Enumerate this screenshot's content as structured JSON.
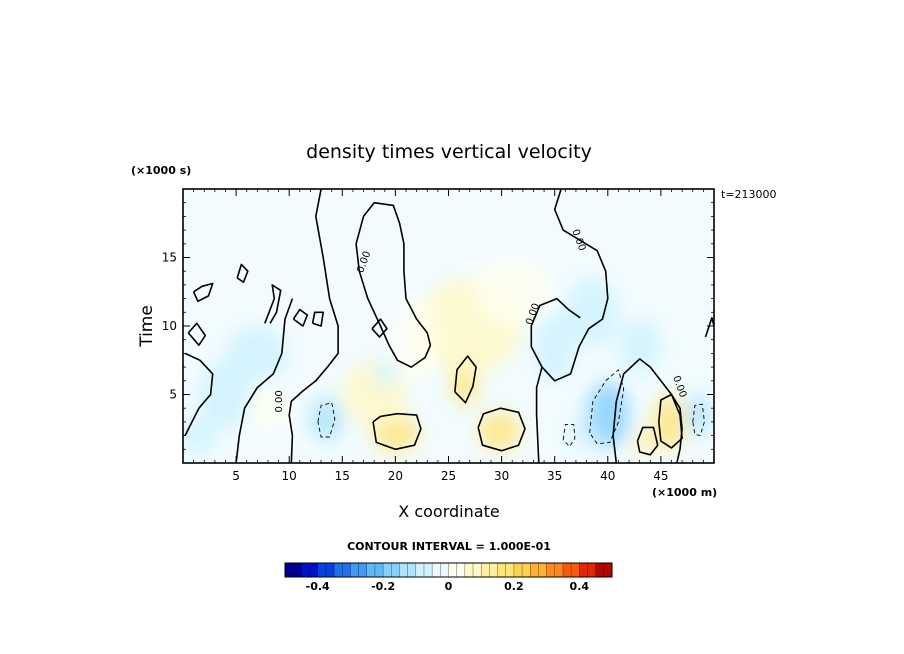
{
  "chart_data": {
    "type": "heatmap",
    "title": "density times vertical velocity",
    "xlabel": "X coordinate",
    "ylabel": "Time",
    "x_unit": "(×1000 m)",
    "y_unit": "(×1000 s)",
    "time_label": "t=213000",
    "xlim": [
      0,
      50
    ],
    "ylim": [
      0,
      20
    ],
    "xticks": [
      5,
      10,
      15,
      20,
      25,
      30,
      35,
      40,
      45
    ],
    "yticks": [
      5,
      10,
      15
    ],
    "contour_interval": "CONTOUR INTERVAL = 1.000E-01",
    "contour_labels": [
      "0.00",
      "0.00",
      "0.00",
      "0.00"
    ],
    "colorbar": {
      "vmin": -0.5,
      "vmax": 0.5,
      "ticks": [
        "-0.4",
        "-0.2",
        "0",
        "0.2",
        "0.4"
      ],
      "tick_values": [
        -0.4,
        -0.2,
        0,
        0.2,
        0.4
      ],
      "colors": [
        "#000090",
        "#0010c8",
        "#0840e0",
        "#2070f0",
        "#4098f8",
        "#60b8f8",
        "#88d0fc",
        "#aee4fc",
        "#d0f2fe",
        "#ecfaff",
        "#fffff0",
        "#fff8c8",
        "#fff0a0",
        "#ffe67c",
        "#ffd050",
        "#ffb030",
        "#ff8820",
        "#f85a10",
        "#e02808",
        "#b00800"
      ]
    },
    "blobs": [
      {
        "x": 20.0,
        "y": 2.2,
        "rx": 2.2,
        "ry": 1.4,
        "value": 0.18
      },
      {
        "x": 29.8,
        "y": 2.3,
        "rx": 2.0,
        "ry": 1.4,
        "value": 0.18
      },
      {
        "x": 26.5,
        "y": 6.0,
        "rx": 1.3,
        "ry": 1.8,
        "value": 0.16
      },
      {
        "x": 45.8,
        "y": 3.0,
        "rx": 1.6,
        "ry": 2.0,
        "value": 0.16
      },
      {
        "x": 43.5,
        "y": 1.5,
        "rx": 1.0,
        "ry": 0.9,
        "value": 0.14
      },
      {
        "x": 27.0,
        "y": 10.0,
        "rx": 5.0,
        "ry": 3.5,
        "value": 0.05
      },
      {
        "x": 31.0,
        "y": 12.5,
        "rx": 3.5,
        "ry": 2.5,
        "value": 0.04
      },
      {
        "x": 22.0,
        "y": 9.0,
        "rx": 2.0,
        "ry": 3.0,
        "value": 0.04
      },
      {
        "x": 18.0,
        "y": 5.0,
        "rx": 3.0,
        "ry": 2.5,
        "value": 0.05
      },
      {
        "x": 8.0,
        "y": 4.0,
        "rx": 2.0,
        "ry": 1.5,
        "value": 0.04
      },
      {
        "x": 13.5,
        "y": 3.2,
        "rx": 1.6,
        "ry": 1.6,
        "value": -0.14
      },
      {
        "x": 40.0,
        "y": 3.5,
        "rx": 2.0,
        "ry": 2.4,
        "value": -0.17
      },
      {
        "x": 37.5,
        "y": 2.2,
        "rx": 1.2,
        "ry": 1.0,
        "value": -0.1
      },
      {
        "x": 48.5,
        "y": 3.5,
        "rx": 1.2,
        "ry": 1.5,
        "value": -0.12
      },
      {
        "x": 4.0,
        "y": 5.0,
        "rx": 2.5,
        "ry": 2.5,
        "value": -0.1
      },
      {
        "x": 1.5,
        "y": 2.0,
        "rx": 1.5,
        "ry": 1.5,
        "value": -0.08
      },
      {
        "x": 7.0,
        "y": 8.0,
        "rx": 3.0,
        "ry": 2.0,
        "value": -0.07
      },
      {
        "x": 35.0,
        "y": 8.5,
        "rx": 2.0,
        "ry": 2.5,
        "value": -0.1
      },
      {
        "x": 38.5,
        "y": 11.0,
        "rx": 2.5,
        "ry": 2.5,
        "value": -0.06
      },
      {
        "x": 43.0,
        "y": 8.5,
        "rx": 2.0,
        "ry": 2.0,
        "value": -0.08
      },
      {
        "x": 19.0,
        "y": 6.5,
        "rx": 1.0,
        "ry": 1.0,
        "value": -0.06
      }
    ],
    "contours": [
      {
        "style": "solid",
        "points": [
          [
            13,
            20
          ],
          [
            12.5,
            18
          ],
          [
            13.2,
            15
          ],
          [
            13.8,
            12
          ],
          [
            14.6,
            10
          ],
          [
            14.6,
            8
          ],
          [
            13.6,
            7
          ],
          [
            12.5,
            6
          ],
          [
            11.2,
            5.2
          ],
          [
            10.2,
            4.5
          ],
          [
            10.0,
            3.5
          ],
          [
            10.3,
            2
          ],
          [
            10.2,
            0
          ]
        ]
      },
      {
        "style": "solid",
        "points": [
          [
            17,
            18
          ],
          [
            18,
            19
          ],
          [
            19.8,
            18.8
          ],
          [
            20.4,
            17.5
          ],
          [
            20.8,
            16
          ],
          [
            20.8,
            14
          ],
          [
            21,
            12
          ],
          [
            22,
            10.5
          ],
          [
            23,
            9.5
          ],
          [
            23.3,
            8.6
          ],
          [
            22.8,
            7.7
          ],
          [
            21.5,
            7.0
          ],
          [
            20.2,
            7.5
          ],
          [
            19.4,
            8.6
          ],
          [
            18.6,
            10
          ],
          [
            17.4,
            12
          ],
          [
            16.6,
            14
          ],
          [
            16.3,
            16
          ],
          [
            17,
            18
          ]
        ]
      },
      {
        "style": "solid",
        "points": [
          [
            35.6,
            20
          ],
          [
            35.0,
            18.5
          ],
          [
            35.8,
            17
          ],
          [
            37.5,
            16.2
          ],
          [
            39.0,
            15.5
          ],
          [
            39.8,
            14
          ],
          [
            40.0,
            12
          ],
          [
            39.5,
            10.5
          ],
          [
            38.2,
            9.8
          ],
          [
            37.3,
            8.5
          ],
          [
            36.5,
            6.5
          ],
          [
            35.0,
            6.0
          ],
          [
            33.8,
            7.0
          ],
          [
            32.8,
            8.5
          ],
          [
            32.8,
            10
          ],
          [
            33.6,
            11.5
          ],
          [
            35.2,
            12.0
          ],
          [
            36.3,
            11.2
          ],
          [
            37.4,
            10.6
          ]
        ]
      },
      {
        "style": "solid",
        "points": [
          [
            33.8,
            7.0
          ],
          [
            33.3,
            5.5
          ],
          [
            33.3,
            3.5
          ],
          [
            33.5,
            0
          ]
        ]
      },
      {
        "style": "solid",
        "points": [
          [
            40.8,
            0
          ],
          [
            40.5,
            2
          ],
          [
            40.8,
            4.5
          ],
          [
            41.5,
            6.5
          ],
          [
            43.0,
            7.6
          ],
          [
            44.0,
            7.0
          ],
          [
            45.0,
            6.0
          ],
          [
            46.0,
            5.0
          ],
          [
            46.8,
            4.0
          ],
          [
            47.0,
            2.5
          ],
          [
            46.8,
            1
          ],
          [
            46.5,
            0
          ]
        ]
      },
      {
        "style": "solid",
        "points": [
          [
            0.2,
            2
          ],
          [
            1.5,
            4
          ],
          [
            2.6,
            5
          ],
          [
            2.8,
            6.5
          ],
          [
            1.6,
            7.5
          ],
          [
            0.2,
            8
          ]
        ]
      },
      {
        "style": "solid",
        "points": [
          [
            5.0,
            0
          ],
          [
            5.3,
            2
          ],
          [
            5.8,
            4
          ],
          [
            7.0,
            5.5
          ],
          [
            8.5,
            6.5
          ],
          [
            9.3,
            8
          ],
          [
            9.6,
            10.5
          ],
          [
            10.3,
            12
          ]
        ]
      },
      {
        "style": "solid",
        "points": [
          [
            17.9,
            3
          ],
          [
            18.2,
            1.5
          ],
          [
            20,
            1.0
          ],
          [
            21.8,
            1.3
          ],
          [
            22.4,
            2.5
          ],
          [
            22,
            3.5
          ],
          [
            20.2,
            3.6
          ],
          [
            18.6,
            3.4
          ],
          [
            17.9,
            3
          ]
        ]
      },
      {
        "style": "solid",
        "points": [
          [
            27.8,
            2.6
          ],
          [
            28.2,
            1.3
          ],
          [
            30,
            0.9
          ],
          [
            31.6,
            1.3
          ],
          [
            32.2,
            2.5
          ],
          [
            31.6,
            3.7
          ],
          [
            29.9,
            4.0
          ],
          [
            28.3,
            3.6
          ],
          [
            27.8,
            2.6
          ]
        ]
      },
      {
        "style": "solid",
        "points": [
          [
            25.6,
            5.2
          ],
          [
            25.8,
            6.8
          ],
          [
            26.8,
            7.8
          ],
          [
            27.6,
            7.0
          ],
          [
            27.3,
            5.6
          ],
          [
            26.6,
            4.4
          ],
          [
            25.6,
            5.2
          ]
        ]
      },
      {
        "style": "solid",
        "points": [
          [
            44.8,
            3.0
          ],
          [
            45.0,
            1.6
          ],
          [
            46,
            1.1
          ],
          [
            47,
            1.8
          ],
          [
            46.8,
            3.5
          ],
          [
            46.0,
            5.0
          ],
          [
            45.0,
            4.6
          ],
          [
            44.8,
            3.0
          ]
        ]
      },
      {
        "style": "solid",
        "points": [
          [
            42.8,
            1.6
          ],
          [
            43.0,
            0.8
          ],
          [
            44,
            0.6
          ],
          [
            44.7,
            1.3
          ],
          [
            44.3,
            2.6
          ],
          [
            43.3,
            2.6
          ],
          [
            42.8,
            1.6
          ]
        ]
      },
      {
        "style": "solid",
        "points": [
          [
            1.0,
            12.5
          ],
          [
            1.8,
            12.9
          ],
          [
            2.8,
            13.1
          ],
          [
            2.4,
            12.2
          ],
          [
            1.4,
            11.8
          ],
          [
            1.0,
            12.5
          ]
        ]
      },
      {
        "style": "solid",
        "points": [
          [
            5.1,
            13.5
          ],
          [
            5.5,
            14.5
          ],
          [
            6.1,
            14.0
          ],
          [
            5.7,
            13.2
          ],
          [
            5.1,
            13.5
          ]
        ]
      },
      {
        "style": "solid",
        "points": [
          [
            7.7,
            10.2
          ],
          [
            8.6,
            12
          ],
          [
            8.4,
            13
          ],
          [
            9.2,
            12.6
          ],
          [
            8.8,
            11
          ],
          [
            8.2,
            10.2
          ]
        ]
      },
      {
        "style": "solid",
        "points": [
          [
            10.4,
            10.5
          ],
          [
            11.0,
            11.2
          ],
          [
            11.7,
            10.8
          ],
          [
            11.3,
            10.0
          ],
          [
            10.4,
            10.5
          ]
        ]
      },
      {
        "style": "solid",
        "points": [
          [
            12.2,
            10.2
          ],
          [
            12.4,
            11.0
          ],
          [
            13.2,
            11.0
          ],
          [
            13.0,
            10.0
          ],
          [
            12.2,
            10.2
          ]
        ]
      },
      {
        "style": "solid",
        "points": [
          [
            0.5,
            9.5
          ],
          [
            1.3,
            10.2
          ],
          [
            2.1,
            9.3
          ],
          [
            1.5,
            8.6
          ],
          [
            0.5,
            9.5
          ]
        ]
      },
      {
        "style": "solid",
        "points": [
          [
            17.8,
            9.8
          ],
          [
            18.6,
            10.5
          ],
          [
            19.2,
            9.8
          ],
          [
            18.5,
            9.2
          ],
          [
            17.8,
            9.8
          ]
        ]
      },
      {
        "style": "solid",
        "points": [
          [
            49.2,
            9.2
          ],
          [
            49.8,
            10.6
          ],
          [
            50,
            10.0
          ]
        ]
      },
      {
        "style": "dashed",
        "points": [
          [
            12.7,
            3.0
          ],
          [
            13.0,
            4.2
          ],
          [
            14.0,
            4.4
          ],
          [
            14.3,
            3.2
          ],
          [
            13.8,
            1.9
          ],
          [
            13.0,
            1.9
          ],
          [
            12.7,
            3.0
          ]
        ]
      },
      {
        "style": "dashed",
        "points": [
          [
            38.3,
            2.2
          ],
          [
            38.6,
            4.5
          ],
          [
            39.8,
            6.0
          ],
          [
            41.0,
            6.8
          ],
          [
            41.5,
            5.4
          ],
          [
            41.0,
            3.0
          ],
          [
            40.2,
            1.5
          ],
          [
            39.0,
            1.4
          ],
          [
            38.3,
            2.2
          ]
        ]
      },
      {
        "style": "dashed",
        "points": [
          [
            35.8,
            1.7
          ],
          [
            36.0,
            2.8
          ],
          [
            36.8,
            2.8
          ],
          [
            36.9,
            1.8
          ],
          [
            36.4,
            1.2
          ],
          [
            35.8,
            1.7
          ]
        ]
      },
      {
        "style": "dashed",
        "points": [
          [
            48.0,
            3.0
          ],
          [
            48.2,
            4.2
          ],
          [
            48.9,
            4.3
          ],
          [
            49.1,
            3.0
          ],
          [
            48.7,
            2.0
          ],
          [
            48.2,
            2.1
          ],
          [
            48.0,
            3.0
          ]
        ]
      }
    ]
  }
}
